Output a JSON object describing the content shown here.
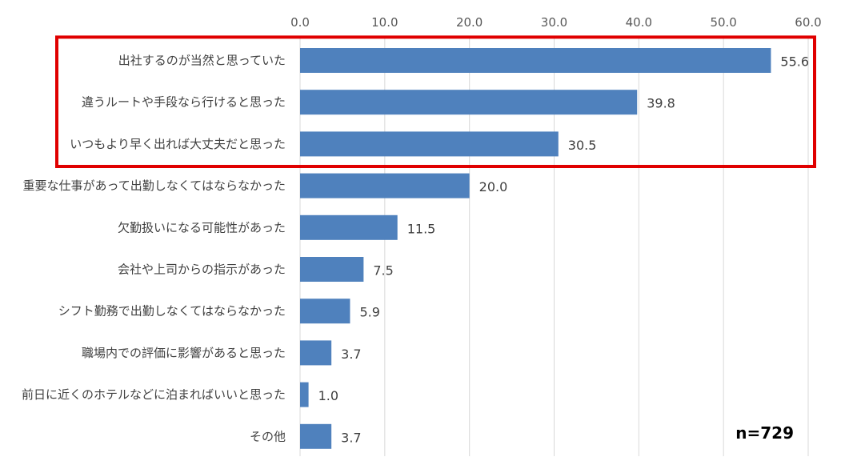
{
  "chart_data": {
    "type": "bar",
    "orientation": "horizontal",
    "categories": [
      "出社するのが当然と思っていた",
      "違うルートや手段なら行けると思った",
      "いつもより早く出れば大丈夫だと思った",
      "重要な仕事があって出勤しなくてはならなかった",
      "欠勤扱いになる可能性があった",
      "会社や上司からの指示があった",
      "シフト勤務で出勤しなくてはならなかった",
      "職場内での評価に影響があると思った",
      "前日に近くのホテルなどに泊まればいいと思った",
      "その他"
    ],
    "values": [
      55.6,
      39.8,
      30.5,
      20.0,
      11.5,
      7.5,
      5.9,
      3.7,
      1.0,
      3.7
    ],
    "value_labels": [
      "55.6",
      "39.8",
      "30.5",
      "20.0",
      "11.5",
      "7.5",
      "5.9",
      "3.7",
      "1.0",
      "3.7"
    ],
    "xlim": [
      0,
      60
    ],
    "ticks": [
      "0.0",
      "10.0",
      "20.0",
      "30.0",
      "40.0",
      "50.0",
      "60.0"
    ],
    "tick_values": [
      0,
      10,
      20,
      30,
      40,
      50,
      60
    ],
    "axis_position": "top",
    "grid": true,
    "bar_color": "#4F81BD",
    "highlight": {
      "categories_count": 3,
      "color": "#E00000"
    },
    "annotation": "n=729"
  }
}
